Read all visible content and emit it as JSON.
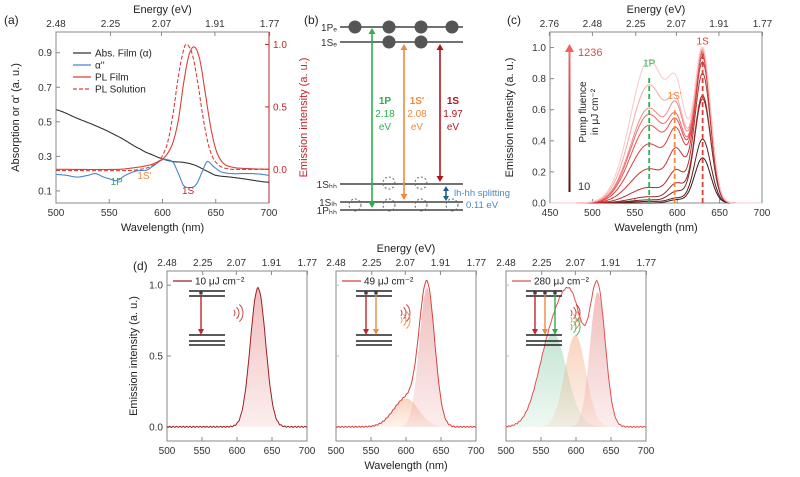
{
  "chart_data": [
    {
      "panel": "(a)",
      "type": "line",
      "top_axis": {
        "label": "Energy (eV)",
        "ticks": [
          "2.48",
          "2.25",
          "2.07",
          "1.91",
          "1.77"
        ]
      },
      "xlabel": "Wavelength (nm)",
      "ylabel": "Absorption or α' (a. u.)",
      "ylabel_right": "Emission intensity (a. u.)",
      "xlim": [
        500,
        700
      ],
      "ylim": [
        0.03,
        1.02
      ],
      "ylim_right": [
        -0.27,
        1.1
      ],
      "xticks": [
        500,
        550,
        600,
        650,
        700
      ],
      "yticks": [
        0.1,
        0.3,
        0.5,
        0.7,
        0.9
      ],
      "yticks_right": [
        0.0,
        0.5,
        1.0
      ],
      "legend": [
        "Abs. Film (α)",
        "α''",
        "PL Film",
        "PL Solution"
      ],
      "legend_position": "top-left",
      "annotations": [
        {
          "text": "1P",
          "x": 557,
          "color": "#3aa655"
        },
        {
          "text": "1S'",
          "x": 583,
          "color": "#f08a3c"
        },
        {
          "text": "1S",
          "x": 624,
          "color": "#c0262d"
        }
      ],
      "series": [
        {
          "name": "Abs. Film (α)",
          "axis": "left",
          "color": "#333333",
          "x": [
            500,
            520,
            540,
            560,
            580,
            590,
            600,
            610,
            620,
            630,
            640,
            650,
            670,
            700
          ],
          "y": [
            0.57,
            0.52,
            0.47,
            0.41,
            0.34,
            0.31,
            0.285,
            0.27,
            0.265,
            0.25,
            0.22,
            0.19,
            0.175,
            0.15
          ]
        },
        {
          "name": "α''",
          "axis": "left",
          "color": "#4a86c8",
          "x": [
            500,
            510,
            520,
            530,
            537,
            545,
            550,
            557,
            565,
            575,
            585,
            590,
            600,
            605,
            610,
            615,
            620,
            627,
            632,
            638,
            642,
            648,
            655,
            665,
            675,
            685,
            695,
            700
          ],
          "y": [
            0.195,
            0.19,
            0.18,
            0.19,
            0.2,
            0.18,
            0.17,
            0.16,
            0.19,
            0.215,
            0.22,
            0.24,
            0.28,
            0.28,
            0.265,
            0.2,
            0.13,
            0.12,
            0.14,
            0.22,
            0.27,
            0.24,
            0.21,
            0.2,
            0.2,
            0.2,
            0.195,
            0.19
          ]
        },
        {
          "name": "PL Film",
          "axis": "right",
          "color": "#d9403a",
          "x": [
            500,
            560,
            580,
            590,
            600,
            605,
            610,
            615,
            620,
            625,
            630,
            635,
            640,
            645,
            650,
            655,
            660,
            670,
            700
          ],
          "y": [
            0,
            0.0,
            0.02,
            0.04,
            0.08,
            0.13,
            0.22,
            0.4,
            0.7,
            0.92,
            0.98,
            0.88,
            0.62,
            0.35,
            0.16,
            0.07,
            0.03,
            0.01,
            0.0
          ]
        },
        {
          "name": "PL Solution",
          "axis": "right",
          "color": "#d9403a",
          "dashed": true,
          "x": [
            500,
            570,
            585,
            595,
            600,
            605,
            610,
            615,
            620,
            623,
            628,
            633,
            638,
            643,
            648,
            655,
            665,
            700
          ],
          "y": [
            -0.01,
            -0.01,
            0.01,
            0.05,
            0.11,
            0.22,
            0.45,
            0.75,
            0.96,
            1.0,
            0.92,
            0.7,
            0.42,
            0.2,
            0.08,
            0.02,
            0.0,
            0.0
          ]
        }
      ]
    },
    {
      "panel": "(b)",
      "type": "diagram",
      "levels_top": [
        "1Pₑ",
        "1Sₑ"
      ],
      "levels_bottom": [
        "1Sₕₕ",
        "1Sₗₕ",
        "1Pₕₕ"
      ],
      "transitions": [
        {
          "name": "1P",
          "energy": "2.18",
          "unit": "eV",
          "color": "#2fae4e"
        },
        {
          "name": "1S'",
          "energy": "2.08",
          "unit": "eV",
          "color": "#f08a3c"
        },
        {
          "name": "1S",
          "energy": "1.97",
          "unit": "eV",
          "color": "#b3141c"
        }
      ],
      "splitting_label": "lh-hh splitting",
      "splitting_value": "0.11 eV",
      "splitting_color": "#4a86c8"
    },
    {
      "panel": "(c)",
      "type": "line",
      "top_axis": {
        "label": "Energy (eV)",
        "ticks": [
          "2.76",
          "2.48",
          "2.25",
          "2.07",
          "1.91",
          "1.77"
        ]
      },
      "xlabel": "Wavelength (nm)",
      "ylabel": "Emission intensity (a. u.)",
      "xlim": [
        450,
        700
      ],
      "ylim": [
        0,
        1.1
      ],
      "xticks": [
        450,
        500,
        550,
        600,
        650,
        700
      ],
      "yticks": [
        0.0,
        0.2,
        0.4,
        0.6,
        0.8,
        1.0
      ],
      "arrow_label_top": "1236",
      "arrow_label_bottom": "10",
      "fluence_label": [
        "Pump fluence",
        "in μJ cm⁻²"
      ],
      "markers": [
        {
          "text": "1P",
          "x": 567,
          "color": "#2fae4e"
        },
        {
          "text": "1S'",
          "x": 597,
          "color": "#f08a3c"
        },
        {
          "text": "1S",
          "x": 630,
          "color": "#d9403a"
        }
      ],
      "series": [
        {
          "peak_1P": 0.0,
          "peak_1Sp": 0.02,
          "peak_1S": 0.29,
          "color": "#3a1a1a"
        },
        {
          "peak_1P": 0.01,
          "peak_1Sp": 0.03,
          "peak_1S": 0.41,
          "color": "#5a2020"
        },
        {
          "peak_1P": 0.02,
          "peak_1Sp": 0.07,
          "peak_1S": 0.67,
          "color": "#7a2424"
        },
        {
          "peak_1P": 0.04,
          "peak_1Sp": 0.12,
          "peak_1S": 0.69,
          "color": "#962a2a"
        },
        {
          "peak_1P": 0.1,
          "peak_1Sp": 0.2,
          "peak_1S": 0.83,
          "color": "#b03030"
        },
        {
          "peak_1P": 0.22,
          "peak_1Sp": 0.33,
          "peak_1S": 0.9,
          "color": "#c83434"
        },
        {
          "peak_1P": 0.38,
          "peak_1Sp": 0.45,
          "peak_1S": 0.93,
          "color": "#dc3c3c"
        },
        {
          "peak_1P": 0.5,
          "peak_1Sp": 0.5,
          "peak_1S": 0.95,
          "color": "#e85050"
        },
        {
          "peak_1P": 0.57,
          "peak_1Sp": 0.53,
          "peak_1S": 0.96,
          "color": "#ee6868"
        },
        {
          "peak_1P": 0.61,
          "peak_1Sp": 0.6,
          "peak_1S": 0.97,
          "color": "#f28888"
        },
        {
          "peak_1P": 0.76,
          "peak_1Sp": 0.63,
          "peak_1S": 0.97,
          "color": "#f6a8a8"
        },
        {
          "peak_1P": 0.92,
          "peak_1Sp": 0.75,
          "peak_1S": 0.98,
          "color": "#fac8c8"
        }
      ]
    },
    {
      "panel": "(d)",
      "type": "area",
      "top_axis": {
        "label": "Energy (eV)",
        "ticks": [
          "2.48",
          "2.25",
          "2.07",
          "1.91",
          "1.77"
        ]
      },
      "xlabel": "Wavelength (nm)",
      "ylabel": "Emission intensity (a. u.)",
      "xlim": [
        500,
        700
      ],
      "ylim": [
        -0.1,
        1.1
      ],
      "xticks": [
        500,
        550,
        600,
        650,
        700
      ],
      "yticks": [
        0.0,
        0.5,
        1.0
      ],
      "subplots": [
        {
          "legend": "10 μJ cm⁻²",
          "components": [
            {
              "center": 630,
              "width": 11,
              "amp": 0.98,
              "color": "#e07070"
            }
          ],
          "total_color": "#9b2020"
        },
        {
          "legend": "49 μJ cm⁻²",
          "components": [
            {
              "center": 600,
              "width": 18,
              "amp": 0.2,
              "color": "#f0a070"
            },
            {
              "center": 630,
              "width": 11,
              "amp": 0.98,
              "color": "#e07070"
            }
          ],
          "total_color": "#d9403a"
        },
        {
          "legend": "280 μJ cm⁻²",
          "components": [
            {
              "center": 567,
              "width": 20,
              "amp": 0.66,
              "color": "#7cc49a"
            },
            {
              "center": 599,
              "width": 15,
              "amp": 0.65,
              "color": "#f0a070"
            },
            {
              "center": 631,
              "width": 11,
              "amp": 0.95,
              "color": "#e07070"
            }
          ],
          "total_color": "#e05050"
        }
      ]
    }
  ]
}
